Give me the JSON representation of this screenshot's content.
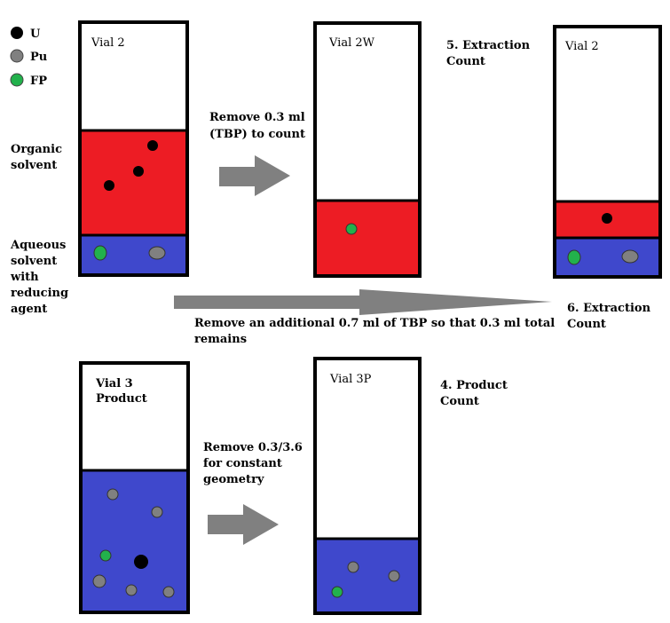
{
  "legend": [
    {
      "key": "U",
      "label": "U",
      "color": "#000000"
    },
    {
      "key": "Pu",
      "label": "Pu",
      "color": "#808080"
    },
    {
      "key": "FP",
      "label": "FP",
      "color": "#22b14c"
    }
  ],
  "colors": {
    "organic": "#ed1c24",
    "aqueous": "#3f48cc",
    "empty": "#ffffff",
    "arrow": "#808080"
  },
  "side_labels": {
    "organic": [
      "Organic",
      "solvent"
    ],
    "aqueous": [
      "Aqueous",
      "solvent",
      "with",
      "reducing",
      "agent"
    ]
  },
  "vials": {
    "vial2_start": {
      "title": [
        "Vial 2"
      ]
    },
    "vial2w": {
      "title": [
        "Vial 2W"
      ]
    },
    "vial2_after": {
      "title": [
        "Vial 2"
      ]
    },
    "vial3": {
      "title": [
        "Vial 3",
        "Product"
      ]
    },
    "vial3p": {
      "title": [
        "Vial 3P"
      ]
    }
  },
  "steps": {
    "remove_tbp": [
      "Remove 0.3 ml",
      "(TBP) to count"
    ],
    "extraction_count_5": [
      "5. Extraction",
      "Count"
    ],
    "remove_additional": [
      "Remove an additional 0.7 ml of TBP so that 0.3 ml total",
      "remains"
    ],
    "extraction_count_6": [
      "6. Extraction",
      "Count"
    ],
    "remove_const": [
      "Remove 0.3/3.6",
      "for constant",
      "geometry"
    ],
    "product_count_4": [
      "4. Product",
      "Count"
    ]
  }
}
